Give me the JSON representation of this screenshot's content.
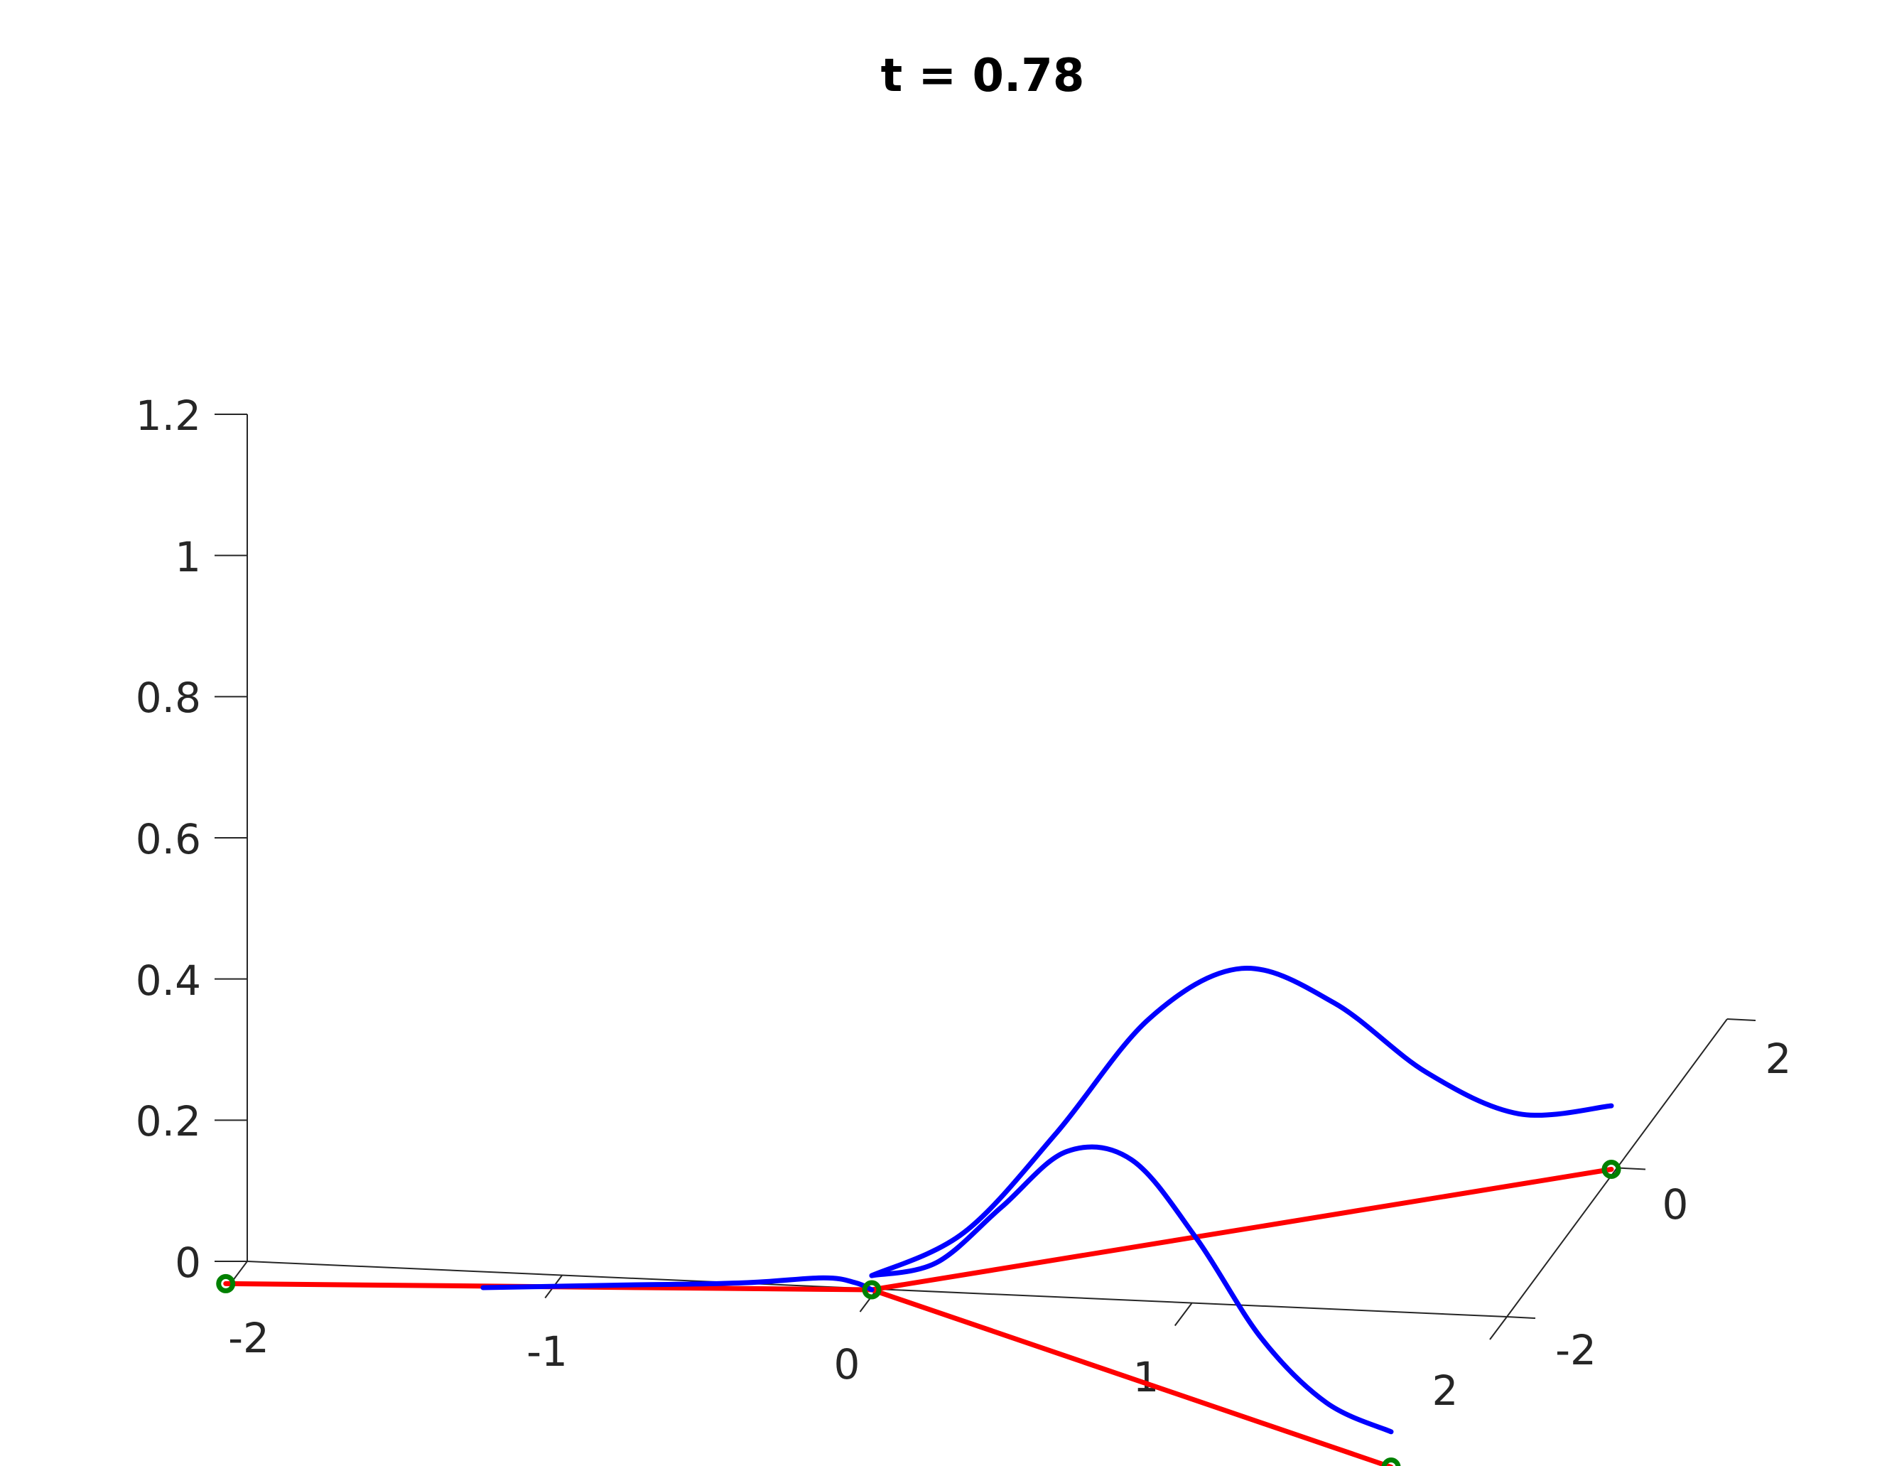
{
  "chart_data": {
    "type": "line",
    "title": "t = 0.78",
    "xlabel": "",
    "ylabel": "",
    "zlabel": "",
    "xlim": [
      -2,
      2
    ],
    "ylim": [
      -2,
      2
    ],
    "zlim": [
      0,
      1.2
    ],
    "grid": false,
    "x_ticks": [
      "-2",
      "-1",
      "0",
      "1",
      "2"
    ],
    "y_ticks": [
      "-2",
      "0",
      "2"
    ],
    "z_ticks": [
      "0",
      "0.2",
      "0.4",
      "0.6",
      "0.8",
      "1",
      "1.2"
    ],
    "colors": {
      "graph_edges": "#ff0000",
      "solution_curves": "#0000ff",
      "vertices": "#008000",
      "axes": "#262626"
    },
    "series": [
      {
        "kind": "graph-edges",
        "segments": [
          [
            [
              -2,
              -0.3
            ],
            [
              0,
              0
            ]
          ],
          [
            [
              0,
              0
            ],
            [
              2,
              2
            ]
          ],
          [
            [
              0,
              0
            ],
            [
              2,
              -2
            ]
          ]
        ]
      },
      {
        "kind": "vertices",
        "points": [
          [
            -2,
            -0.3
          ],
          [
            0,
            0
          ],
          [
            2,
            2
          ],
          [
            2,
            -2
          ]
        ]
      },
      {
        "kind": "solution-curve-left",
        "points": [
          [
            -1.2,
            -0.2,
            0.0
          ],
          [
            -0.8,
            -0.12,
            0.003
          ],
          [
            -0.4,
            -0.06,
            0.008
          ],
          [
            -0.15,
            -0.02,
            0.016
          ],
          [
            -0.05,
            -0.01,
            0.01
          ],
          [
            0.0,
            0.0,
            0.0
          ]
        ]
      },
      {
        "kind": "solution-curve-upper",
        "points": [
          [
            0.0,
            0.0,
            0.02
          ],
          [
            0.25,
            0.25,
            0.06
          ],
          [
            0.5,
            0.5,
            0.18
          ],
          [
            0.75,
            0.75,
            0.32
          ],
          [
            1.0,
            1.0,
            0.37
          ],
          [
            1.25,
            1.25,
            0.3
          ],
          [
            1.5,
            1.5,
            0.18
          ],
          [
            1.75,
            1.75,
            0.1
          ],
          [
            2.0,
            2.0,
            0.09
          ]
        ]
      },
      {
        "kind": "solution-curve-lower",
        "points": [
          [
            0.0,
            0.0,
            0.02
          ],
          [
            0.25,
            -0.25,
            0.07
          ],
          [
            0.5,
            -0.5,
            0.18
          ],
          [
            0.75,
            -0.75,
            0.29
          ],
          [
            1.0,
            -1.0,
            0.31
          ],
          [
            1.25,
            -1.25,
            0.23
          ],
          [
            1.5,
            -1.5,
            0.12
          ],
          [
            1.75,
            -1.75,
            0.06
          ],
          [
            2.0,
            -2.0,
            0.05
          ]
        ]
      }
    ]
  }
}
